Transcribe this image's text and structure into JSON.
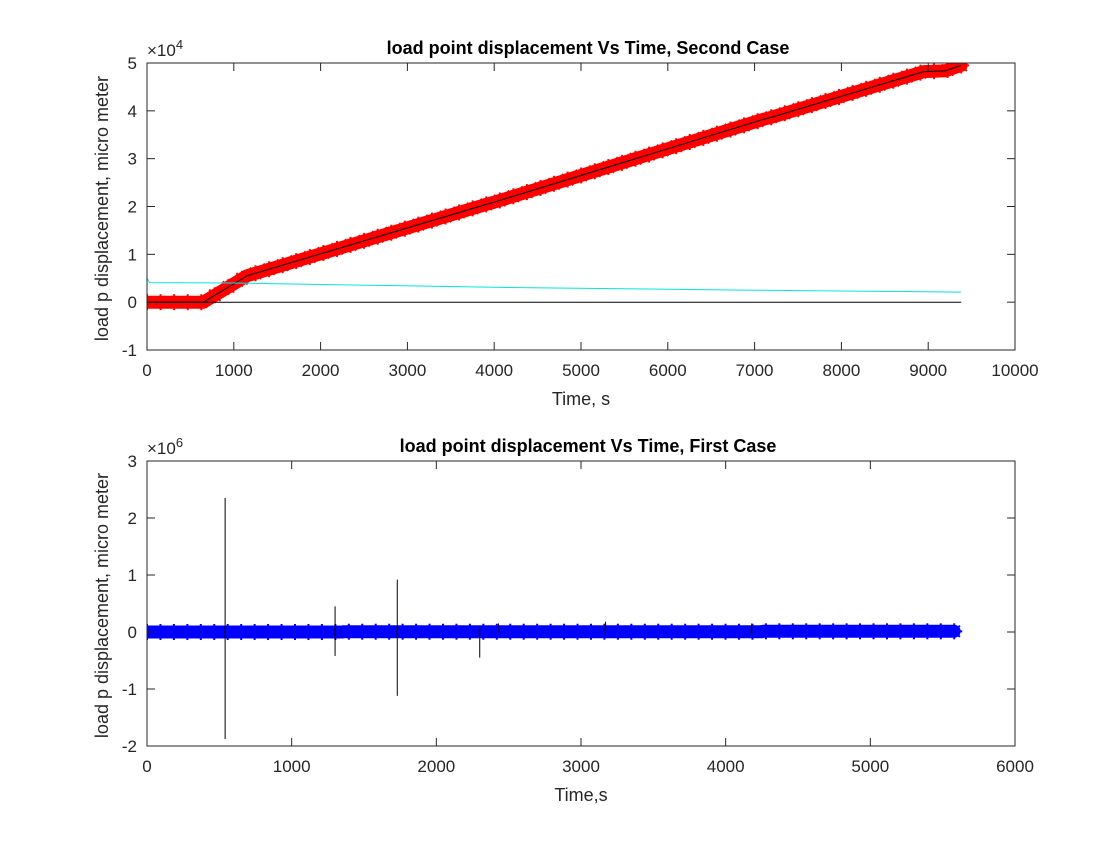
{
  "chart_data": [
    {
      "type": "line",
      "title": "load point displacement Vs Time, Second Case",
      "xlabel": "Time, s",
      "ylabel": "load p displacement, micro meter",
      "xlim": [
        0,
        10000
      ],
      "ylim": [
        -1,
        5
      ],
      "y_exponent_label": "×10",
      "y_exponent": "4",
      "x_ticks": [
        "0",
        "1000",
        "2000",
        "3000",
        "4000",
        "5000",
        "6000",
        "7000",
        "8000",
        "9000",
        "10000"
      ],
      "y_ticks": [
        "-1",
        "0",
        "1",
        "2",
        "3",
        "4",
        "5"
      ],
      "grid": false,
      "colors": {
        "displacement": "#ff0000",
        "secondary": "#00e5e5",
        "baseline": "#000000"
      },
      "series": [
        {
          "marker": "*",
          "color": "#ff0000",
          "x": [
            0,
            650,
            1150,
            3900,
            4000,
            7100,
            7200,
            8950,
            9200,
            9380
          ],
          "y": [
            0,
            0,
            0.55,
            2.04,
            2.09,
            3.82,
            3.87,
            4.82,
            4.84,
            4.95
          ]
        },
        {
          "color": "#000000",
          "x": [
            0,
            650,
            1150,
            3900,
            4000,
            7100,
            7200,
            8950,
            9200,
            9380
          ],
          "y": [
            0,
            0,
            0.55,
            2.04,
            2.09,
            3.82,
            3.87,
            4.82,
            4.84,
            4.95
          ]
        },
        {
          "color": "#00e5e5",
          "x": [
            0,
            30,
            1000,
            4000,
            7000,
            9380
          ],
          "y": [
            0.5,
            0.41,
            0.4,
            0.31,
            0.25,
            0.21
          ]
        },
        {
          "color": "#000000",
          "x": [
            0,
            9380
          ],
          "y": [
            0,
            0
          ]
        }
      ]
    },
    {
      "type": "line",
      "title": "load point displacement Vs Time, First Case",
      "xlabel": "Time,s",
      "ylabel": "load p displacement, micro meter",
      "xlim": [
        0,
        6000
      ],
      "ylim": [
        -2,
        3
      ],
      "y_exponent_label": "×10",
      "y_exponent": "6",
      "x_ticks": [
        "0",
        "1000",
        "2000",
        "3000",
        "4000",
        "5000",
        "6000"
      ],
      "y_ticks": [
        "-2",
        "-1",
        "0",
        "1",
        "2",
        "3"
      ],
      "grid": false,
      "colors": {
        "displacement": "#0000ff",
        "spikes": "#000000"
      },
      "series": [
        {
          "marker": "*",
          "color": "#0000ff",
          "x": [
            0,
            1350,
            1360,
            4250,
            4260,
            5580
          ],
          "y": [
            0,
            0,
            0.005,
            0.005,
            0.012,
            0.012
          ]
        },
        {
          "color": "#000000",
          "spikes": [
            {
              "x": 540,
              "top": 2.35,
              "bottom": -1.88
            },
            {
              "x": 1300,
              "top": 0.45,
              "bottom": -0.42
            },
            {
              "x": 1730,
              "top": 0.92,
              "bottom": -1.12
            },
            {
              "x": 2300,
              "top": 0.05,
              "bottom": -0.45
            },
            {
              "x": 2430,
              "top": 0.15,
              "bottom": -0.02
            },
            {
              "x": 3170,
              "top": 0.18,
              "bottom": -0.02
            },
            {
              "x": 4180,
              "top": 0.15,
              "bottom": -0.02
            }
          ]
        }
      ]
    }
  ]
}
